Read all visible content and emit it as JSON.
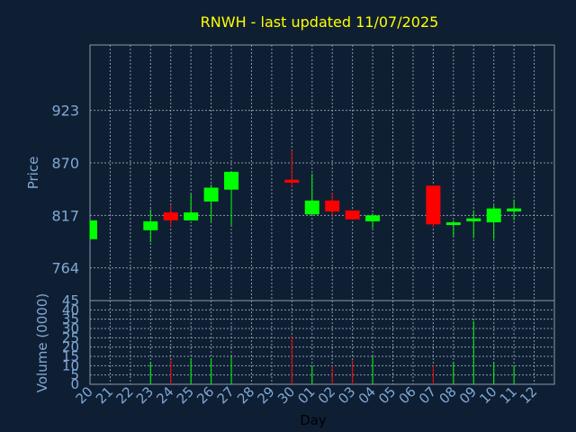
{
  "chart_data": {
    "type": "candlestick",
    "title": "RNWH - last updated 11/07/2025",
    "xlabel": "Day",
    "price_axis": {
      "label": "Price",
      "ticks": [
        764,
        817,
        870,
        923
      ],
      "ylim": [
        731,
        989
      ]
    },
    "volume_axis": {
      "label": "Volume (0000)",
      "ticks": [
        0,
        5,
        10,
        15,
        20,
        25,
        30,
        35,
        40,
        45
      ],
      "ylim": [
        0,
        45
      ]
    },
    "x_tick_labels": [
      "20",
      "21",
      "22",
      "23",
      "24",
      "25",
      "26",
      "27",
      "28",
      "29",
      "30",
      "01",
      "02",
      "03",
      "04",
      "05",
      "06",
      "07",
      "08",
      "09",
      "10",
      "11",
      "12"
    ],
    "colors": {
      "up": "#00ff00",
      "down": "#ff0000",
      "background": "#0f1f33",
      "title": "#ffff00",
      "axis_text": "#7fa8d6",
      "grid": "#8899aa"
    },
    "candles": [
      {
        "day": "20",
        "open": 793,
        "close": 812,
        "high": 812,
        "low": 793,
        "volume": 0
      },
      {
        "day": "23",
        "open": 802,
        "close": 811,
        "high": 823,
        "low": 790,
        "volume": 12
      },
      {
        "day": "24",
        "open": 820,
        "close": 812,
        "high": 827,
        "low": 806,
        "volume": 13
      },
      {
        "day": "25",
        "open": 812,
        "close": 820,
        "high": 839,
        "low": 812,
        "volume": 14
      },
      {
        "day": "26",
        "open": 831,
        "close": 845,
        "high": 848,
        "low": 811,
        "volume": 14
      },
      {
        "day": "27",
        "open": 843,
        "close": 861,
        "high": 861,
        "low": 807,
        "volume": 15
      },
      {
        "day": "30",
        "open": 853,
        "close": 850,
        "high": 883,
        "low": 846,
        "volume": 26
      },
      {
        "day": "01",
        "open": 818,
        "close": 832,
        "high": 859,
        "low": 818,
        "volume": 10
      },
      {
        "day": "02",
        "open": 832,
        "close": 821,
        "high": 840,
        "low": 815,
        "volume": 10
      },
      {
        "day": "03",
        "open": 822,
        "close": 813,
        "high": 822,
        "low": 813,
        "volume": 13
      },
      {
        "day": "04",
        "open": 811,
        "close": 817,
        "high": 819,
        "low": 804,
        "volume": 15
      },
      {
        "day": "07",
        "open": 847,
        "close": 808,
        "high": 847,
        "low": 805,
        "volume": 10
      },
      {
        "day": "08",
        "open": 808,
        "close": 810,
        "high": 812,
        "low": 796,
        "volume": 12
      },
      {
        "day": "09",
        "open": 811,
        "close": 814,
        "high": 822,
        "low": 794,
        "volume": 34
      },
      {
        "day": "10",
        "open": 810,
        "close": 824,
        "high": 827,
        "low": 793,
        "volume": 12
      },
      {
        "day": "11",
        "open": 821,
        "close": 824,
        "high": 833,
        "low": 812,
        "volume": 10
      }
    ]
  }
}
